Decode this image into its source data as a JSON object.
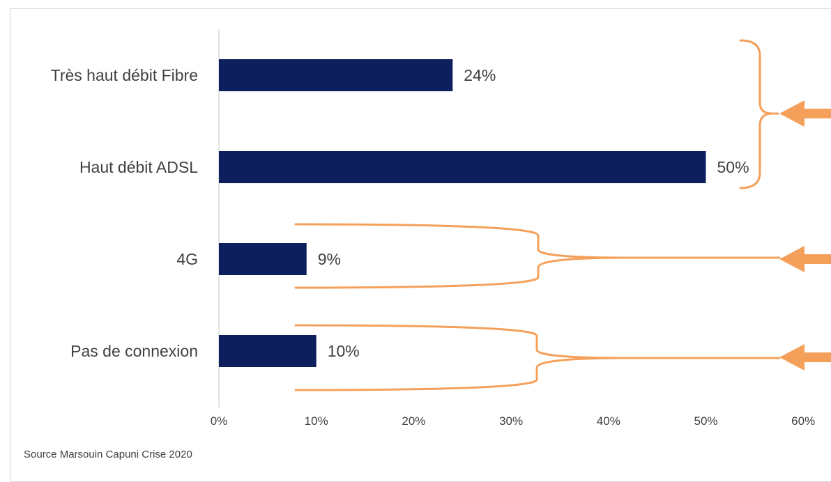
{
  "chart_data": {
    "type": "bar",
    "orientation": "horizontal",
    "categories": [
      "Très haut débit Fibre",
      "Haut débit ADSL",
      "4G",
      "Pas de connexion"
    ],
    "values": [
      24,
      50,
      9,
      10
    ],
    "value_labels": [
      "24%",
      "50%",
      "9%",
      "10%"
    ],
    "xlim": [
      0,
      60
    ],
    "xticks": [
      "0%",
      "10%",
      "20%",
      "30%",
      "40%",
      "50%",
      "60%"
    ],
    "grid": false,
    "bar_color": "#0d1f5c",
    "annotation_color": "#f5a05a"
  },
  "source": "Source Marsouin Capuni Crise 2020"
}
